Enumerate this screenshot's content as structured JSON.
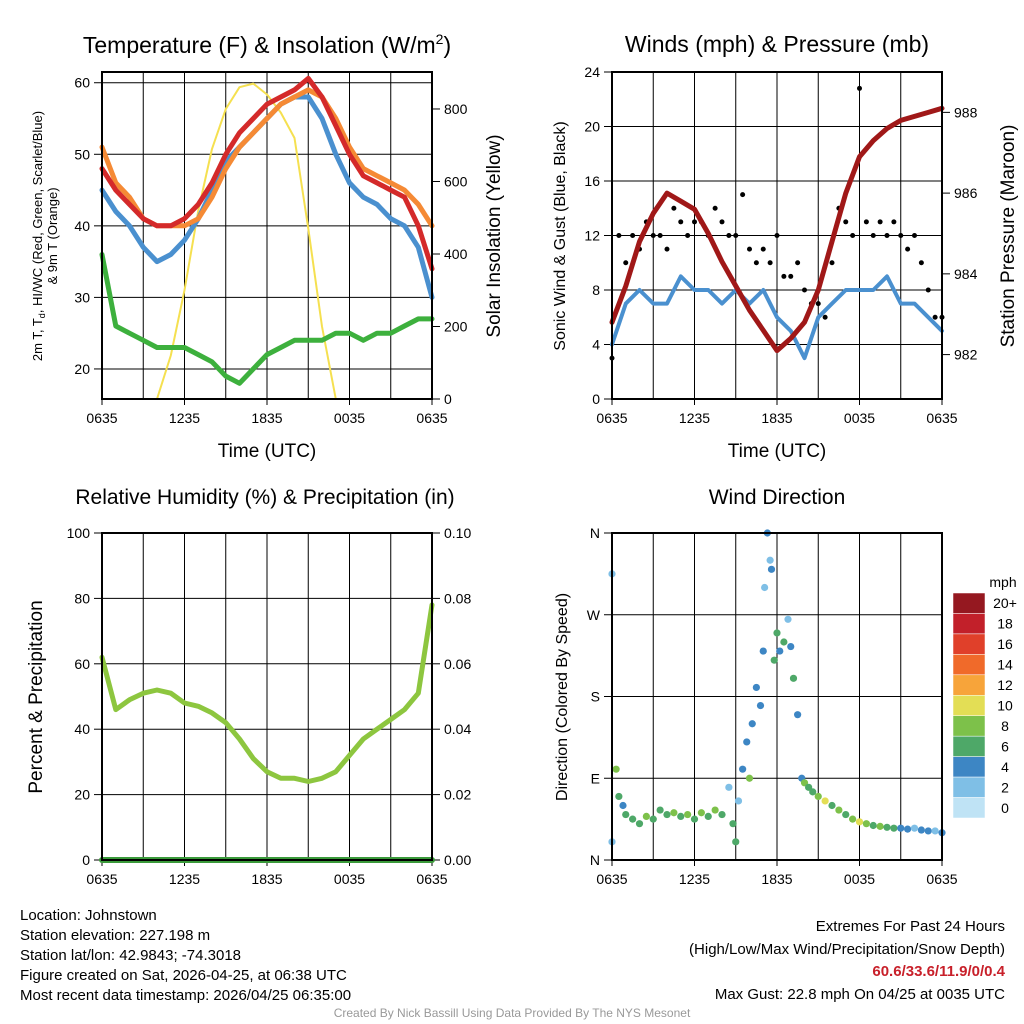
{
  "colors": {
    "temp": "#d42a2a",
    "temp9m": "#f58a35",
    "hiwc": "#4a90cf",
    "dew": "#3db03d",
    "solar": "#f5e050",
    "wind": "#4a90cf",
    "gust": "#000000",
    "pressure": "#a01818",
    "rh": "#8dc63f",
    "precip": "#3a9a3a"
  },
  "chart_data": [
    {
      "type": "line",
      "title_main": "Temperature (F) & Insolation (W/m",
      "title_sup": "2",
      "title_end": ")",
      "xlabel": "Time (UTC)",
      "ylabel_a": "2m T, T",
      "ylabel_sub": "d",
      "ylabel_b": ", HI/WC (Red, Green, Scarlet/Blue)",
      "ylabel_line2": "& 9m T (Orange)",
      "ylabel_right": "Solar Insolation (Yellow)",
      "xticks": [
        "0635",
        "1235",
        "1835",
        "0035",
        "0635"
      ],
      "yticks": [
        "20",
        "30",
        "40",
        "50",
        "60"
      ],
      "yticks_right": [
        "0",
        "200",
        "400",
        "600",
        "800"
      ],
      "ylim": [
        15.8,
        61.5
      ],
      "ylim_right": [
        0,
        902
      ],
      "x_hours": [
        0,
        1,
        2,
        3,
        4,
        5,
        6,
        7,
        8,
        9,
        10,
        11,
        12,
        13,
        14,
        15,
        16,
        17,
        18,
        19,
        20,
        21,
        22,
        23,
        24
      ],
      "series": [
        {
          "name": "Solar Insolation",
          "axis": "right",
          "color_key": "solar",
          "values": [
            0,
            0,
            0,
            0,
            0,
            120,
            300,
            520,
            690,
            800,
            860,
            870,
            840,
            790,
            720,
            470,
            200,
            0,
            0,
            0,
            0,
            0,
            0,
            0,
            0
          ]
        },
        {
          "name": "Dewpoint",
          "color_key": "dew",
          "values": [
            36,
            26,
            25,
            24,
            23,
            23,
            23,
            22,
            21,
            19,
            18,
            20,
            22,
            23,
            24,
            24,
            24,
            25,
            25,
            24,
            25,
            25,
            26,
            27,
            27
          ]
        },
        {
          "name": "HI/WC",
          "color_key": "hiwc",
          "values": [
            45,
            42,
            40,
            37,
            35,
            36,
            38,
            41,
            45,
            49,
            51,
            53,
            55,
            57,
            58,
            58,
            55,
            50,
            46,
            44,
            43,
            41,
            40,
            37,
            30
          ]
        },
        {
          "name": "9m T",
          "color_key": "temp9m",
          "values": [
            51,
            46,
            44,
            41,
            40,
            40,
            40,
            41,
            44,
            48,
            51,
            53,
            55,
            57,
            58,
            59,
            58,
            55,
            51,
            48,
            47,
            46,
            45,
            43,
            40
          ]
        },
        {
          "name": "2m T",
          "color_key": "temp",
          "values": [
            48,
            45,
            43,
            41,
            40,
            40,
            41,
            43,
            46,
            50,
            53,
            55,
            57,
            58,
            59,
            60.6,
            58,
            54,
            50,
            47,
            46,
            45,
            44,
            40,
            34
          ]
        }
      ]
    },
    {
      "type": "line",
      "title": "Winds (mph) & Pressure (mb)",
      "xlabel": "Time (UTC)",
      "ylabel": "Sonic Wind & Gust (Blue, Black)",
      "ylabel_right": "Station Pressure (Maroon)",
      "xticks": [
        "0635",
        "1235",
        "1835",
        "0035",
        "0635"
      ],
      "yticks": [
        "0",
        "4",
        "8",
        "12",
        "16",
        "20",
        "24"
      ],
      "yticks_right": [
        "982",
        "984",
        "986",
        "988"
      ],
      "ylim": [
        0,
        24
      ],
      "ylim_right": [
        980.9,
        989.0
      ],
      "x_hours": [
        0,
        1,
        2,
        3,
        4,
        5,
        6,
        7,
        8,
        9,
        10,
        11,
        12,
        13,
        14,
        15,
        16,
        17,
        18,
        19,
        20,
        21,
        22,
        23,
        24
      ],
      "wind": [
        4,
        7,
        8,
        7,
        7,
        9,
        8,
        8,
        7,
        8,
        7,
        8,
        6,
        5,
        3,
        6,
        7,
        8,
        8,
        8,
        9,
        7,
        7,
        6,
        5
      ],
      "pressure": [
        982.8,
        983.7,
        984.8,
        985.5,
        986.0,
        985.8,
        985.6,
        985.0,
        984.3,
        983.7,
        983.1,
        982.6,
        982.1,
        982.4,
        982.8,
        983.6,
        984.8,
        986.0,
        986.9,
        987.3,
        987.6,
        987.8,
        987.9,
        988.0,
        988.1
      ],
      "gust_step_hours": 0.5,
      "gusts": [
        3,
        12,
        10,
        12,
        11,
        13,
        12,
        12,
        11,
        14,
        13,
        12,
        13,
        13,
        12,
        14,
        13,
        12,
        12,
        15,
        11,
        10,
        11,
        10,
        12,
        9,
        9,
        10,
        8,
        7,
        7,
        6,
        10,
        14,
        13,
        12,
        22.8,
        13,
        12,
        13,
        12,
        13,
        12,
        11,
        12,
        10,
        8,
        6,
        6
      ]
    },
    {
      "type": "line",
      "title": "Relative Humidity (%) & Precipitation (in)",
      "ylabel": "Percent & Precipitation",
      "xticks": [
        "0635",
        "1235",
        "1835",
        "0035",
        "0635"
      ],
      "yticks": [
        "0",
        "20",
        "40",
        "60",
        "80",
        "100"
      ],
      "yticks_right": [
        "0.00",
        "0.02",
        "0.04",
        "0.06",
        "0.08",
        "0.10"
      ],
      "ylim": [
        0,
        100
      ],
      "ylim_right": [
        0,
        0.1
      ],
      "x_hours": [
        0,
        1,
        2,
        3,
        4,
        5,
        6,
        7,
        8,
        9,
        10,
        11,
        12,
        13,
        14,
        15,
        16,
        17,
        18,
        19,
        20,
        21,
        22,
        23,
        24
      ],
      "rh": [
        62,
        46,
        49,
        51,
        52,
        51,
        48,
        47,
        45,
        42,
        37,
        31,
        27,
        25,
        25,
        24,
        25,
        27,
        32,
        37,
        40,
        43,
        46,
        51,
        78
      ],
      "precip": [
        0,
        0,
        0,
        0,
        0,
        0,
        0,
        0,
        0,
        0,
        0,
        0,
        0,
        0,
        0,
        0,
        0,
        0,
        0,
        0,
        0,
        0,
        0,
        0,
        0
      ]
    },
    {
      "type": "scatter",
      "title": "Wind Direction",
      "ylabel": "Direction (Colored By Speed)",
      "xticks": [
        "0635",
        "1235",
        "1835",
        "0035",
        "0635"
      ],
      "yticks": [
        "N",
        "E",
        "S",
        "W",
        "N"
      ],
      "ylim": [
        0,
        360
      ],
      "colorbar_title": "mph",
      "colorbar_labels": [
        "20+",
        "18",
        "16",
        "14",
        "12",
        "10",
        "8",
        "6",
        "4",
        "2",
        "0"
      ],
      "colorbar_colors": [
        "#951820",
        "#c2202a",
        "#e0402a",
        "#f06a2a",
        "#f7a43a",
        "#e3de55",
        "#7dc14a",
        "#4ea868",
        "#3d86c4",
        "#7fbfe6",
        "#bfe3f5"
      ],
      "points_t_dir_speed": [
        [
          0,
          20,
          2
        ],
        [
          0,
          315,
          3
        ],
        [
          0.3,
          100,
          8
        ],
        [
          0.5,
          70,
          6
        ],
        [
          0.8,
          60,
          4
        ],
        [
          1,
          50,
          6
        ],
        [
          1.5,
          45,
          7
        ],
        [
          2,
          40,
          6
        ],
        [
          2.5,
          48,
          8
        ],
        [
          3,
          45,
          6
        ],
        [
          3.5,
          55,
          7
        ],
        [
          4,
          50,
          7
        ],
        [
          4.5,
          52,
          8
        ],
        [
          5,
          48,
          7
        ],
        [
          5.5,
          50,
          9
        ],
        [
          6,
          45,
          6
        ],
        [
          6.5,
          52,
          8
        ],
        [
          7,
          48,
          7
        ],
        [
          7.5,
          55,
          9
        ],
        [
          8,
          50,
          6
        ],
        [
          8.5,
          80,
          3
        ],
        [
          8.8,
          40,
          6
        ],
        [
          9,
          20,
          7
        ],
        [
          9.2,
          65,
          3
        ],
        [
          9.5,
          100,
          4
        ],
        [
          9.8,
          130,
          5
        ],
        [
          10,
          90,
          8
        ],
        [
          10.2,
          150,
          4
        ],
        [
          10.5,
          190,
          5
        ],
        [
          10.8,
          170,
          4
        ],
        [
          11,
          230,
          5
        ],
        [
          11.1,
          300,
          3
        ],
        [
          11.3,
          360,
          4
        ],
        [
          11.5,
          330,
          3
        ],
        [
          11.6,
          320,
          4
        ],
        [
          11.8,
          220,
          6
        ],
        [
          12,
          250,
          7
        ],
        [
          12.2,
          230,
          5
        ],
        [
          12.5,
          240,
          6
        ],
        [
          12.8,
          265,
          2
        ],
        [
          13,
          235,
          5
        ],
        [
          13.2,
          200,
          6
        ],
        [
          13.5,
          160,
          4
        ],
        [
          13.8,
          90,
          5
        ],
        [
          14,
          85,
          8
        ],
        [
          14.3,
          80,
          7
        ],
        [
          14.6,
          75,
          6
        ],
        [
          15,
          70,
          8
        ],
        [
          15.5,
          65,
          10
        ],
        [
          16,
          60,
          7
        ],
        [
          16.5,
          55,
          8
        ],
        [
          17,
          50,
          6
        ],
        [
          17.5,
          45,
          9
        ],
        [
          18,
          42,
          10
        ],
        [
          18.5,
          40,
          8
        ],
        [
          19,
          38,
          7
        ],
        [
          19.5,
          37,
          8
        ],
        [
          20,
          36,
          6
        ],
        [
          20.5,
          35,
          7
        ],
        [
          21,
          35,
          5
        ],
        [
          21.5,
          34,
          4
        ],
        [
          22,
          35,
          3
        ],
        [
          22.5,
          33,
          4
        ],
        [
          23,
          32,
          4
        ],
        [
          23.5,
          32,
          3
        ],
        [
          24,
          30,
          4
        ]
      ]
    }
  ],
  "info": {
    "location": "Location: Johnstown",
    "elevation": "Station elevation: 227.198 m",
    "latlon": "Station lat/lon: 42.9843; -74.3018",
    "created": "Figure created on Sat, 2026-04-25, at 06:38 UTC",
    "recent": "Most recent data timestamp: 2026/04/25 06:35:00"
  },
  "extremes": {
    "title": "Extremes For Past 24 Hours",
    "subtitle": "(High/Low/Max Wind/Precipitation/Snow Depth)",
    "values": "60.6/33.6/11.9/0/0.4",
    "max_gust": "Max Gust: 22.8 mph On 04/25 at 0035 UTC"
  },
  "credit": "Created By Nick Bassill Using Data Provided By The NYS Mesonet"
}
